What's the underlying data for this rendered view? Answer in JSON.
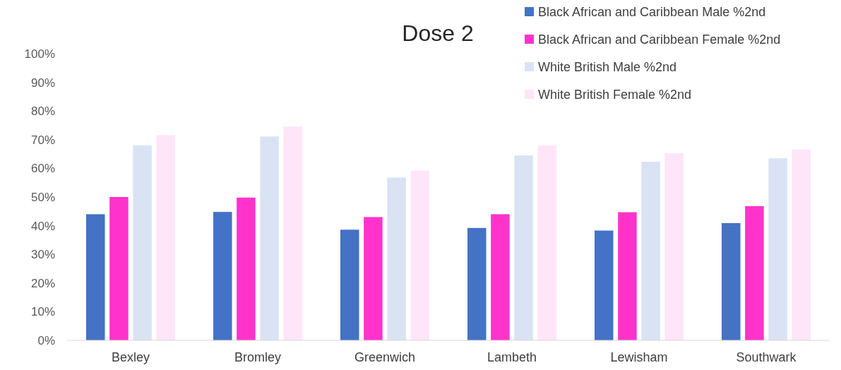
{
  "chart_data": {
    "type": "bar",
    "title": "Dose 2",
    "categories": [
      "Bexley",
      "Bromley",
      "Greenwich",
      "Lambeth",
      "Lewisham",
      "Southwark"
    ],
    "series": [
      {
        "name": "Black African and Caribbean Male %2nd",
        "color": "#4472c4",
        "values": [
          44,
          44.8,
          38.6,
          39.2,
          38.3,
          40.9
        ]
      },
      {
        "name": "Black African and Caribbean Female %2nd",
        "color": "#ff33cc",
        "values": [
          50,
          49.8,
          43,
          44,
          44.7,
          46.8
        ]
      },
      {
        "name": "White British Male %2nd",
        "color": "#dae3f3",
        "values": [
          68,
          71.1,
          56.8,
          64.5,
          62.3,
          63.5
        ]
      },
      {
        "name": "White British Female %2nd",
        "color": "#ffe5f7",
        "values": [
          71.6,
          74.6,
          59.2,
          68,
          65.3,
          66.6
        ]
      }
    ],
    "ylim": [
      0,
      100
    ],
    "yticks": [
      {
        "value": 0,
        "label": "0%"
      },
      {
        "value": 10,
        "label": "10%"
      },
      {
        "value": 20,
        "label": "20%"
      },
      {
        "value": 30,
        "label": "30%"
      },
      {
        "value": 40,
        "label": "40%"
      },
      {
        "value": 50,
        "label": "50%"
      },
      {
        "value": 60,
        "label": "60%"
      },
      {
        "value": 70,
        "label": "70%"
      },
      {
        "value": 80,
        "label": "80%"
      },
      {
        "value": 90,
        "label": "90%"
      },
      {
        "value": 100,
        "label": "100%"
      }
    ],
    "grid": false,
    "legend": "top right"
  }
}
